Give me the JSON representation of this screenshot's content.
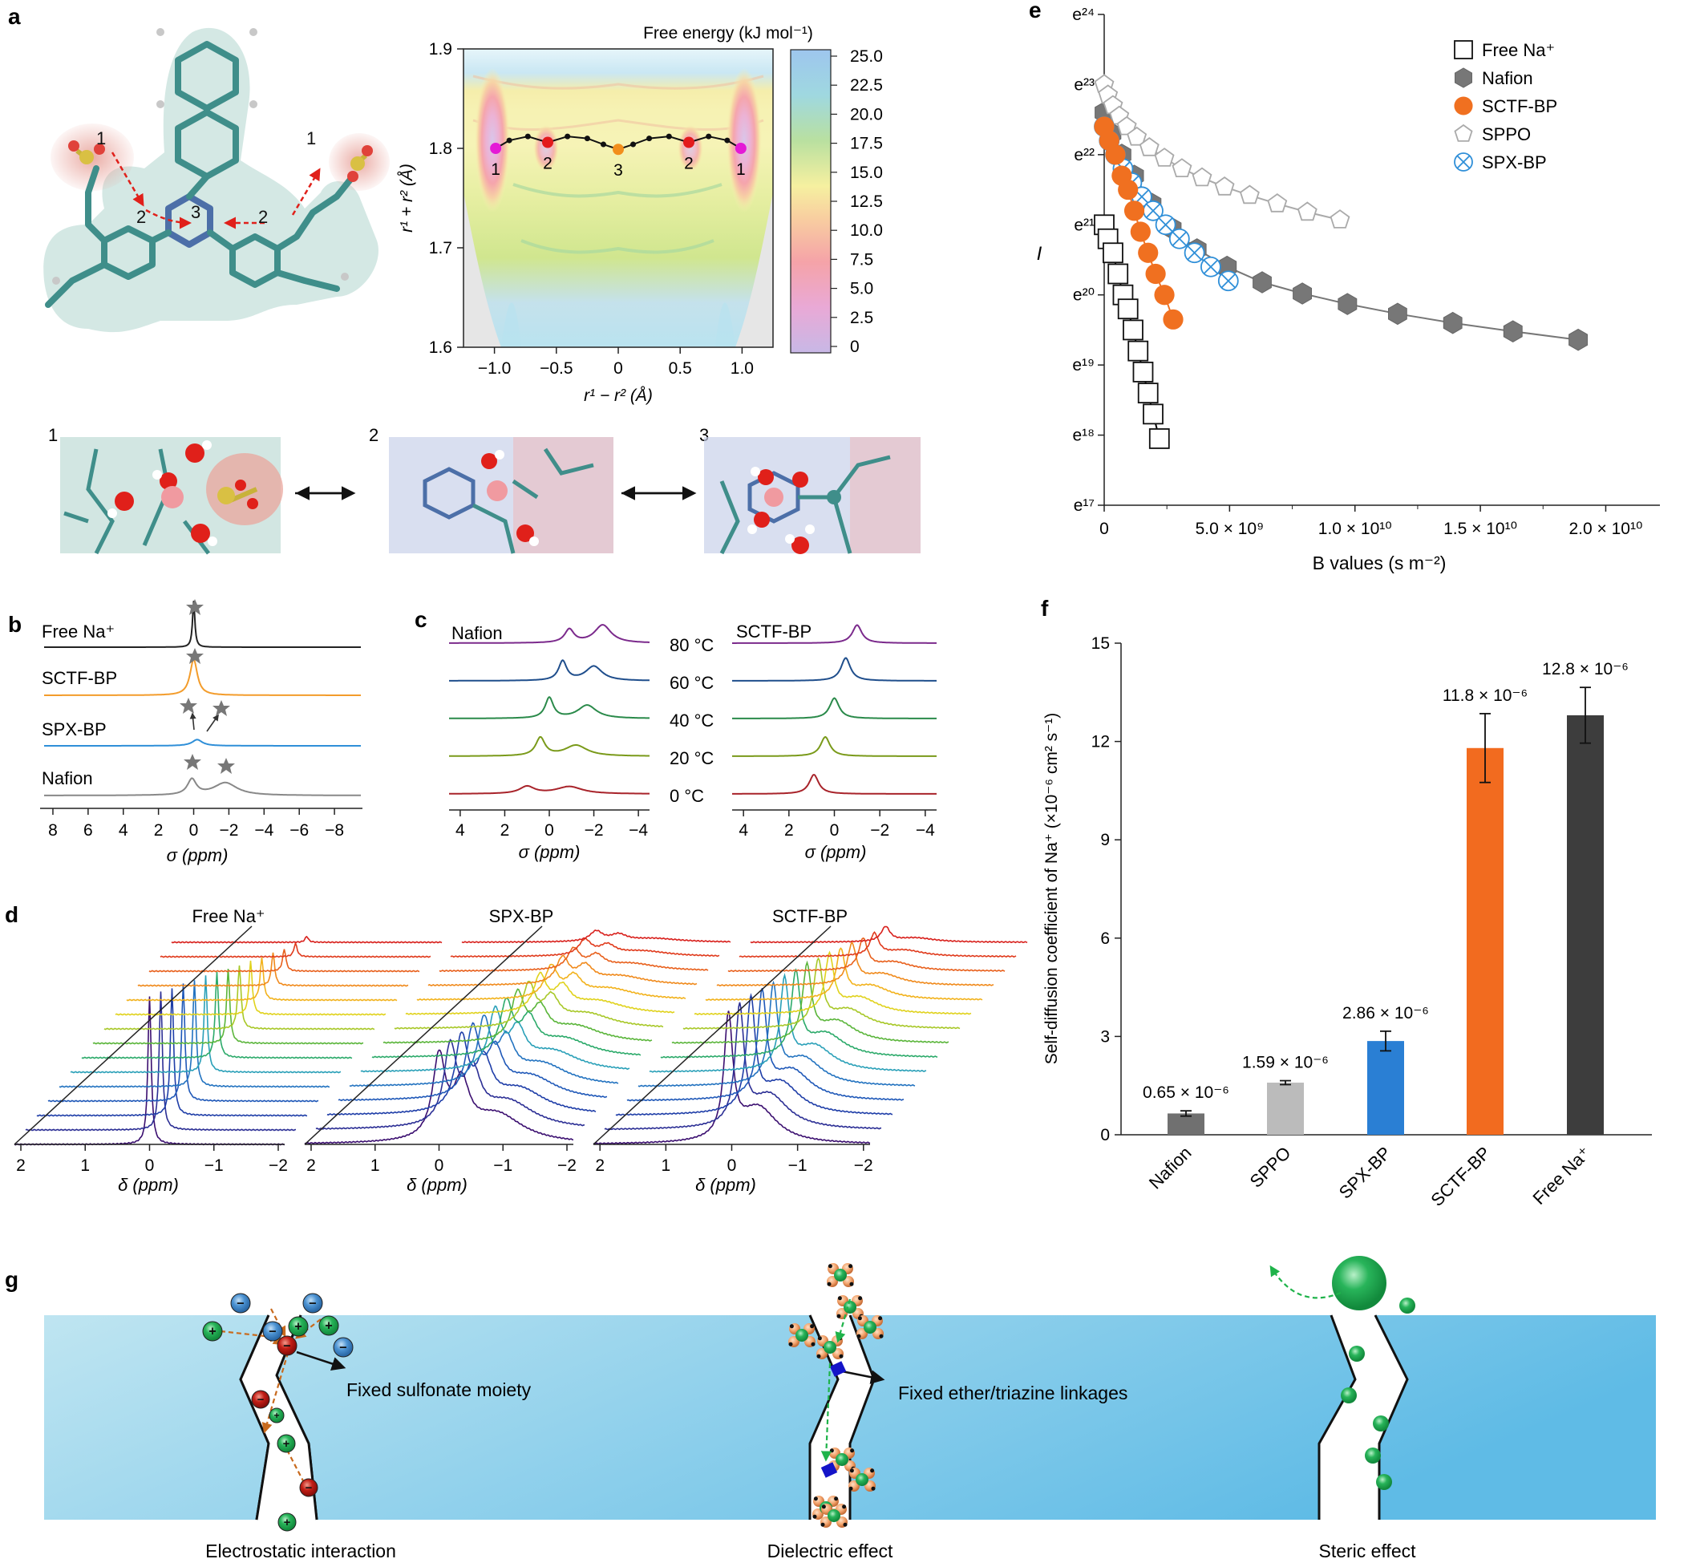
{
  "panels": {
    "a": "a",
    "b": "b",
    "c": "c",
    "d": "d",
    "e": "e",
    "f": "f",
    "g": "g"
  },
  "panel_a": {
    "mol_labels": [
      "1",
      "2",
      "3",
      "2",
      "1"
    ],
    "snap_labels": [
      "1",
      "2",
      "3"
    ],
    "chart_data": {
      "type": "heatmap",
      "title": "Free energy (kJ mol⁻¹)",
      "xlabel": "r¹ − r² (Å)",
      "ylabel": "r¹ + r² (Å)",
      "xlim": [
        -1.25,
        1.25
      ],
      "ylim": [
        1.6,
        1.9
      ],
      "xticks": [
        "−1.0",
        "−0.5",
        "0",
        "0.5",
        "1.0"
      ],
      "yticks": [
        "1.6",
        "1.7",
        "1.8",
        "1.9"
      ],
      "colorbar_ticks": [
        "25.0",
        "22.5",
        "20.0",
        "17.5",
        "15.0",
        "12.5",
        "10.0",
        "7.5",
        "5.0",
        "2.5",
        "0"
      ],
      "colorbar_range": [
        0,
        25
      ],
      "path_x": [
        -0.99,
        -0.88,
        -0.73,
        -0.57,
        -0.41,
        -0.25,
        -0.12,
        0.0,
        0.12,
        0.25,
        0.41,
        0.57,
        0.73,
        0.88,
        0.99
      ],
      "path_y": [
        1.8,
        1.808,
        1.812,
        1.806,
        1.812,
        1.81,
        1.804,
        1.799,
        1.804,
        1.81,
        1.812,
        1.806,
        1.812,
        1.808,
        1.8
      ],
      "markers": [
        {
          "label": "1",
          "x": -0.99,
          "y": 1.8,
          "color": "#e41ad6"
        },
        {
          "label": "2",
          "x": -0.57,
          "y": 1.806,
          "color": "#e31a1c"
        },
        {
          "label": "3",
          "x": 0.0,
          "y": 1.799,
          "color": "#f28e1c"
        },
        {
          "label": "2",
          "x": 0.57,
          "y": 1.806,
          "color": "#e31a1c"
        },
        {
          "label": "1",
          "x": 0.99,
          "y": 1.8,
          "color": "#e41ad6"
        }
      ]
    }
  },
  "panel_b": {
    "chart_data": {
      "type": "line",
      "xlabel": "σ (ppm)",
      "xlim": [
        8.5,
        -9.5
      ],
      "xticks": [
        "8",
        "6",
        "4",
        "2",
        "0",
        "−2",
        "−4",
        "−6",
        "−8"
      ],
      "series": [
        {
          "name": "Free Na⁺",
          "color": "#222222",
          "peaks": [
            {
              "c": 0.0,
              "w": 0.08,
              "h": 1.0
            }
          ]
        },
        {
          "name": "SCTF-BP",
          "color": "#f39c2b",
          "peaks": [
            {
              "c": 0.0,
              "w": 0.25,
              "h": 0.9
            }
          ]
        },
        {
          "name": "SPX-BP",
          "color": "#2f8fd8",
          "peaks": [
            {
              "c": -0.2,
              "w": 0.35,
              "h": 0.35
            }
          ]
        },
        {
          "name": "Nafion",
          "color": "#888888",
          "peaks": [
            {
              "c": 0.1,
              "w": 0.3,
              "h": 0.55
            },
            {
              "c": -1.8,
              "w": 0.8,
              "h": 0.45
            }
          ]
        }
      ]
    }
  },
  "panel_c": {
    "left_title": "Nafion",
    "right_title": "SCTF-BP",
    "temps": [
      "80 °C",
      "60 °C",
      "40 °C",
      "20 °C",
      "0 °C"
    ],
    "colors": [
      "#7b2a8c",
      "#1f4e8c",
      "#2a8a4a",
      "#7a9a1a",
      "#a8232a"
    ],
    "xlabel": "σ (ppm)",
    "xticks": [
      "4",
      "2",
      "0",
      "−2",
      "−4"
    ],
    "chart_data": {
      "type": "line",
      "nafion_peaks": [
        [
          {
            "c": -0.9,
            "w": 0.25,
            "h": 0.55
          },
          {
            "c": -2.4,
            "w": 0.45,
            "h": 0.75
          }
        ],
        [
          {
            "c": -0.6,
            "w": 0.22,
            "h": 0.8
          },
          {
            "c": -2.0,
            "w": 0.45,
            "h": 0.6
          }
        ],
        [
          {
            "c": 0.0,
            "w": 0.22,
            "h": 0.85
          },
          {
            "c": -1.7,
            "w": 0.5,
            "h": 0.55
          }
        ],
        [
          {
            "c": 0.4,
            "w": 0.25,
            "h": 0.75
          },
          {
            "c": -1.2,
            "w": 0.6,
            "h": 0.45
          }
        ],
        [
          {
            "c": 1.0,
            "w": 0.4,
            "h": 0.3
          },
          {
            "c": -0.9,
            "w": 0.7,
            "h": 0.3
          }
        ]
      ],
      "sctf_peaks": [
        [
          {
            "c": -1.0,
            "w": 0.25,
            "h": 0.75
          }
        ],
        [
          {
            "c": -0.5,
            "w": 0.25,
            "h": 0.95
          }
        ],
        [
          {
            "c": 0.0,
            "w": 0.25,
            "h": 0.85
          }
        ],
        [
          {
            "c": 0.4,
            "w": 0.25,
            "h": 0.8
          }
        ],
        [
          {
            "c": 0.9,
            "w": 0.25,
            "h": 0.8
          }
        ]
      ]
    }
  },
  "panel_d": {
    "titles": [
      "Free Na⁺",
      "SPX-BP",
      "SCTF-BP"
    ],
    "xlabel": "δ (ppm)",
    "xticks": [
      "2",
      "1",
      "0",
      "−1",
      "−2"
    ],
    "trace_colors": [
      "#3b0f70",
      "#2c2f95",
      "#1f3ea8",
      "#1f58b8",
      "#2373c0",
      "#2aa0b8",
      "#2caa6a",
      "#5ab53a",
      "#a8c828",
      "#e0d21c",
      "#f2b21c",
      "#f08a1c",
      "#e8601c",
      "#e03a1c",
      "#d8201c"
    ],
    "chart_data": {
      "type": "line",
      "decay_free": [
        1.0,
        0.93,
        0.86,
        0.79,
        0.72,
        0.65,
        0.58,
        0.5,
        0.43,
        0.36,
        0.29,
        0.22,
        0.15,
        0.09,
        0.04
      ],
      "decay_spx": [
        0.95,
        0.9,
        0.84,
        0.78,
        0.72,
        0.66,
        0.6,
        0.54,
        0.48,
        0.42,
        0.36,
        0.3,
        0.24,
        0.18,
        0.12
      ],
      "decay_sctf": [
        1.0,
        0.95,
        0.9,
        0.84,
        0.78,
        0.72,
        0.66,
        0.6,
        0.53,
        0.46,
        0.39,
        0.32,
        0.25,
        0.18,
        0.12
      ]
    }
  },
  "panel_e": {
    "chart_data": {
      "type": "scatter",
      "xlabel": "B values (s m⁻²)",
      "ylabel": "I",
      "xlim": [
        0,
        22000000000.0
      ],
      "ylim": [
        17,
        24
      ],
      "xticks": [
        {
          "v": 0,
          "label": "0"
        },
        {
          "v": 5000000000.0,
          "label": "5.0 × 10⁹"
        },
        {
          "v": 10000000000.0,
          "label": "1.0 × 10¹⁰"
        },
        {
          "v": 15000000000.0,
          "label": "1.5 × 10¹⁰"
        },
        {
          "v": 20000000000.0,
          "label": "2.0 × 10¹⁰"
        }
      ],
      "yticks": [
        {
          "v": 24,
          "label": "e²⁴"
        },
        {
          "v": 23,
          "label": "e²³"
        },
        {
          "v": 22,
          "label": "e²²"
        },
        {
          "v": 21,
          "label": "e²¹"
        },
        {
          "v": 20,
          "label": "e²⁰"
        },
        {
          "v": 19,
          "label": "e¹⁹"
        },
        {
          "v": 18,
          "label": "e¹⁸"
        },
        {
          "v": 17,
          "label": "e¹⁷"
        }
      ],
      "series": [
        {
          "name": "Free Na⁺",
          "marker": "square",
          "fit_color": "#000000",
          "x": [
            0.0,
            150000000.0,
            350000000.0,
            550000000.0,
            750000000.0,
            950000000.0,
            1150000000.0,
            1350000000.0,
            1550000000.0,
            1750000000.0,
            1950000000.0,
            2200000000.0
          ],
          "y": [
            21.0,
            20.8,
            20.6,
            20.3,
            20.0,
            19.8,
            19.5,
            19.2,
            18.9,
            18.6,
            18.3,
            17.95
          ]
        },
        {
          "name": "Nafion",
          "marker": "hexagon",
          "fit_color": "#777777",
          "x": [
            0.0,
            300000000.0,
            700000000.0,
            1200000000.0,
            1900000000.0,
            2700000000.0,
            3700000000.0,
            4900000000.0,
            6300000000.0,
            7900000000.0,
            9700000000.0,
            11700000000.0,
            13900000000.0,
            16300000000.0,
            18900000000.0
          ],
          "y": [
            22.6,
            22.3,
            22.0,
            21.7,
            21.3,
            20.95,
            20.65,
            20.4,
            20.18,
            20.02,
            19.87,
            19.73,
            19.6,
            19.48,
            19.36
          ]
        },
        {
          "name": "SCTF-BP",
          "marker": "circle",
          "fit_color": "#f07020",
          "x": [
            0.0,
            200000000.0,
            450000000.0,
            700000000.0,
            950000000.0,
            1200000000.0,
            1450000000.0,
            1750000000.0,
            2050000000.0,
            2400000000.0,
            2750000000.0
          ],
          "y": [
            22.4,
            22.2,
            22.0,
            21.7,
            21.5,
            21.2,
            20.9,
            20.6,
            20.3,
            20.0,
            19.65
          ]
        },
        {
          "name": "SPPO",
          "marker": "pentagon",
          "fit_color": "#aaaaaa",
          "x": [
            0.0,
            150000000.0,
            350000000.0,
            600000000.0,
            900000000.0,
            1300000000.0,
            1800000000.0,
            2400000000.0,
            3100000000.0,
            3900000000.0,
            4800000000.0,
            5800000000.0,
            6900000000.0,
            8100000000.0,
            9400000000.0
          ],
          "y": [
            23.0,
            22.85,
            22.7,
            22.55,
            22.4,
            22.25,
            22.1,
            21.95,
            21.8,
            21.67,
            21.54,
            21.42,
            21.3,
            21.18,
            21.07
          ]
        },
        {
          "name": "SPX-BP",
          "marker": "crossedcircle",
          "fit_color": "#3a8fd0",
          "x": [
            0.0,
            200000000.0,
            450000000.0,
            750000000.0,
            1100000000.0,
            1500000000.0,
            1950000000.0,
            2450000000.0,
            3000000000.0,
            3600000000.0,
            4250000000.0,
            4950000000.0
          ],
          "y": [
            22.4,
            22.2,
            22.0,
            21.8,
            21.6,
            21.4,
            21.2,
            21.0,
            20.8,
            20.6,
            20.4,
            20.2
          ]
        }
      ]
    }
  },
  "panel_f": {
    "chart_data": {
      "type": "bar",
      "categories": [
        "Nafion",
        "SPPO",
        "SPX-BP",
        "SCTF-BP",
        "Free Na⁺"
      ],
      "values": [
        0.65,
        1.59,
        2.86,
        11.8,
        12.8
      ],
      "errors": [
        0.08,
        0.06,
        0.3,
        1.05,
        0.85
      ],
      "labels": [
        "0.65 × 10⁻⁶",
        "1.59 × 10⁻⁶",
        "2.86 × 10⁻⁶",
        "11.8 × 10⁻⁶",
        "12.8 × 10⁻⁶"
      ],
      "colors": [
        "#707070",
        "#bbbbbb",
        "#2a7fd4",
        "#f26b1f",
        "#3d3d3d"
      ],
      "ylabel": "Self-diffusion coefficient of Na⁺ (×10⁻⁶ cm² s⁻¹)",
      "ylim": [
        0,
        15
      ],
      "yticks": [
        "0",
        "3",
        "6",
        "9",
        "12",
        "15"
      ]
    }
  },
  "panel_g": {
    "fixed_sulfonate": "Fixed sulfonate  moiety",
    "fixed_ether": "Fixed ether/triazine linkages",
    "caption_1": "Electrostatic interaction",
    "caption_2": "Dielectric effect",
    "caption_3": "Steric effect",
    "plus": "+",
    "minus": "−"
  }
}
